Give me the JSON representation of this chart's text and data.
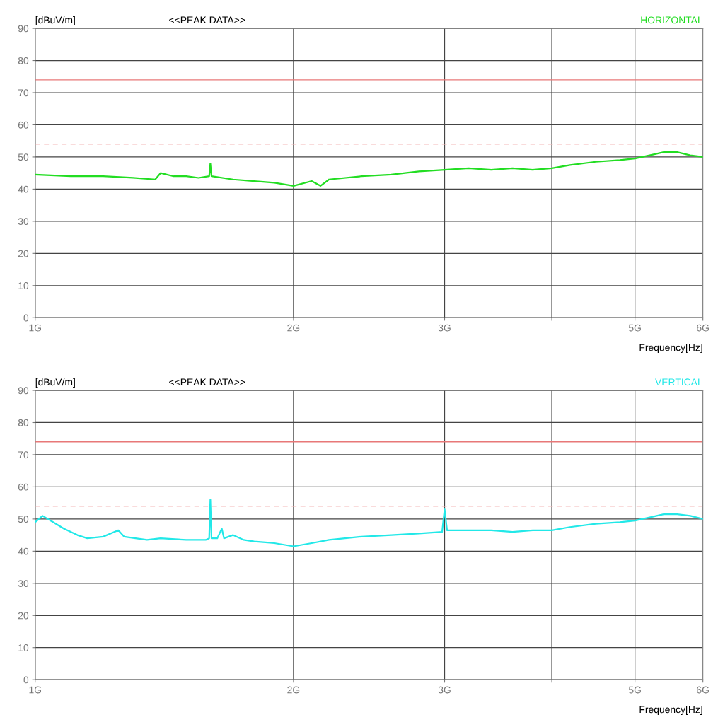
{
  "chart_data": [
    {
      "type": "line",
      "title": "<<PEAK DATA>>",
      "ylabel": "[dBuV/m]",
      "xlabel": "Frequency[Hz]",
      "log": "x",
      "grid": true,
      "legend": false,
      "marker": "none",
      "line_style": "solid",
      "xlim": [
        1,
        6
      ],
      "xticks": [
        {
          "value": 1,
          "label": "1G"
        },
        {
          "value": 2,
          "label": "2G"
        },
        {
          "value": 3,
          "label": "3G"
        },
        {
          "value": 4,
          "label": null
        },
        {
          "value": 5,
          "label": "5G"
        },
        {
          "value": 6,
          "label": "6G"
        }
      ],
      "ylim": [
        0,
        90
      ],
      "yticks": [
        0,
        10,
        20,
        30,
        40,
        50,
        60,
        70,
        80,
        90
      ],
      "ref_lines": [
        {
          "axis": "y",
          "value": 74,
          "color": "#e87878",
          "line_style": "solid"
        },
        {
          "axis": "y",
          "value": 54,
          "color": "#f4b8b8",
          "line_style": "dashed"
        }
      ],
      "series": [
        {
          "name": "HORIZONTAL",
          "color": "#22dd22",
          "x": [
            1.0,
            1.1,
            1.2,
            1.3,
            1.38,
            1.4,
            1.45,
            1.5,
            1.55,
            1.595,
            1.6,
            1.605,
            1.7,
            1.8,
            1.9,
            2.0,
            2.1,
            2.15,
            2.2,
            2.4,
            2.6,
            2.8,
            3.0,
            3.2,
            3.4,
            3.6,
            3.8,
            4.0,
            4.2,
            4.5,
            4.8,
            5.0,
            5.2,
            5.4,
            5.6,
            5.8,
            6.0
          ],
          "values": [
            44.5,
            44,
            44,
            43.5,
            43,
            45,
            44,
            44,
            43.5,
            44,
            48,
            44,
            43,
            42.5,
            42,
            41,
            42.5,
            41,
            43,
            44,
            44.5,
            45.5,
            46,
            46.5,
            46,
            46.5,
            46,
            46.5,
            47.5,
            48.5,
            49,
            49.5,
            50.5,
            51.5,
            51.5,
            50.5,
            50
          ]
        }
      ]
    },
    {
      "type": "line",
      "title": "<<PEAK DATA>>",
      "ylabel": "[dBuV/m]",
      "xlabel": "Frequency[Hz]",
      "log": "x",
      "grid": true,
      "legend": false,
      "marker": "none",
      "line_style": "solid",
      "xlim": [
        1,
        6
      ],
      "xticks": [
        {
          "value": 1,
          "label": "1G"
        },
        {
          "value": 2,
          "label": "2G"
        },
        {
          "value": 3,
          "label": "3G"
        },
        {
          "value": 4,
          "label": null
        },
        {
          "value": 5,
          "label": "5G"
        },
        {
          "value": 6,
          "label": "6G"
        }
      ],
      "ylim": [
        0,
        90
      ],
      "yticks": [
        0,
        10,
        20,
        30,
        40,
        50,
        60,
        70,
        80,
        90
      ],
      "ref_lines": [
        {
          "axis": "y",
          "value": 74,
          "color": "#e87878",
          "line_style": "solid"
        },
        {
          "axis": "y",
          "value": 54,
          "color": "#f4b8b8",
          "line_style": "dashed"
        }
      ],
      "series": [
        {
          "name": "VERTICAL",
          "color": "#22e8e8",
          "x": [
            1.0,
            1.02,
            1.05,
            1.08,
            1.12,
            1.15,
            1.2,
            1.25,
            1.27,
            1.35,
            1.4,
            1.5,
            1.58,
            1.595,
            1.6,
            1.605,
            1.63,
            1.65,
            1.66,
            1.7,
            1.75,
            1.8,
            1.9,
            2.0,
            2.1,
            2.2,
            2.4,
            2.6,
            2.8,
            2.98,
            3.0,
            3.02,
            3.2,
            3.4,
            3.6,
            3.8,
            4.0,
            4.2,
            4.5,
            4.8,
            5.0,
            5.2,
            5.4,
            5.6,
            5.8,
            6.0
          ],
          "values": [
            49,
            51,
            49,
            47,
            45,
            44,
            44.5,
            46.5,
            44.5,
            43.5,
            44,
            43.5,
            43.5,
            44,
            56,
            44,
            44,
            47,
            44,
            45,
            43.5,
            43,
            42.5,
            41.5,
            42.5,
            43.5,
            44.5,
            45,
            45.5,
            46,
            53,
            46.5,
            46.5,
            46.5,
            46,
            46.5,
            46.5,
            47.5,
            48.5,
            49,
            49.5,
            50.5,
            51.5,
            51.5,
            51,
            50
          ]
        }
      ]
    }
  ]
}
